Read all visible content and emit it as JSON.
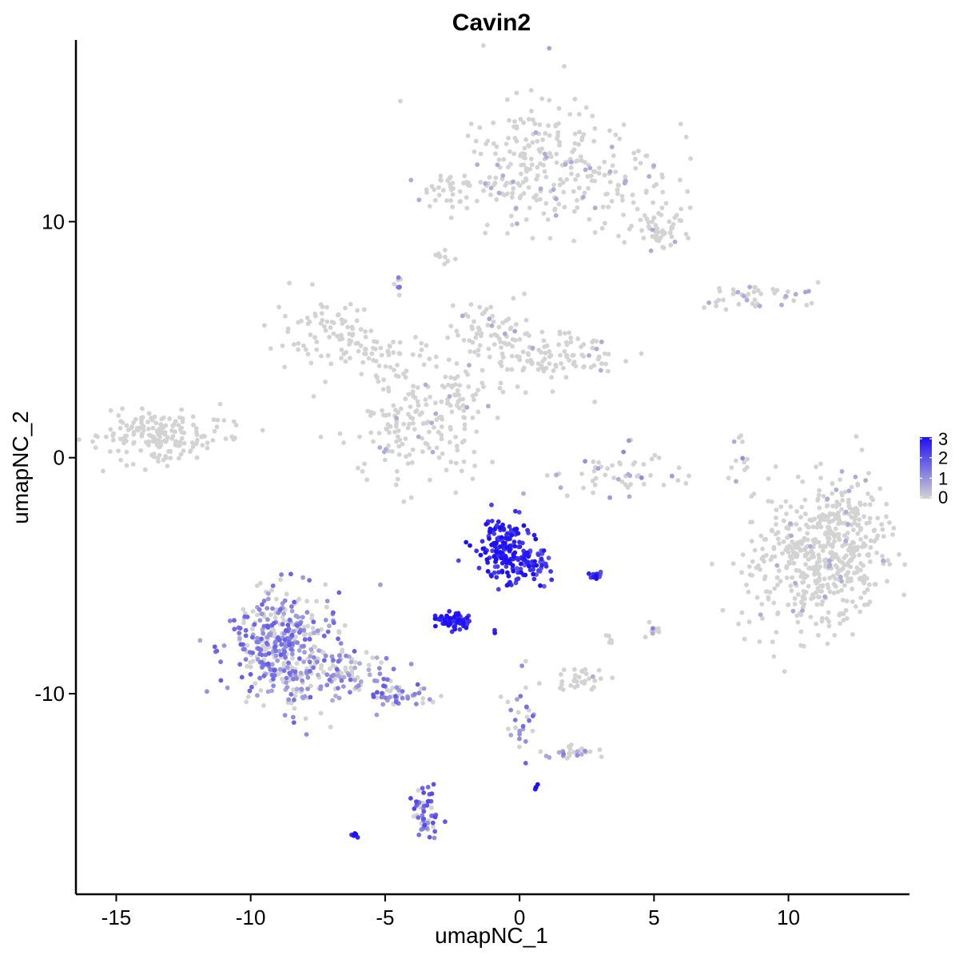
{
  "chart_data": {
    "type": "scatter",
    "title": "Cavin2",
    "xlabel": "umapNC_1",
    "ylabel": "umapNC_2",
    "xlim": [
      -16.5,
      14.5
    ],
    "ylim": [
      -18.5,
      17.7
    ],
    "x_ticks": [
      -15,
      -10,
      -5,
      0,
      5,
      10
    ],
    "y_ticks": [
      10,
      0,
      -10
    ],
    "x_tick_labels": [
      "-15",
      "-10",
      "-5",
      "0",
      "5",
      "10"
    ],
    "y_tick_labels": [
      "10",
      "0",
      "-10"
    ],
    "grid": false,
    "legend": {
      "placement": "right",
      "type": "colorbar",
      "min": 0,
      "max": 3,
      "ticks": [
        3,
        2,
        1,
        0
      ],
      "tick_labels": [
        "3",
        "2",
        "1",
        "0"
      ],
      "color_low": "#d3d3d3",
      "color_high": "#1e10f5"
    },
    "clusters": [
      {
        "cx": 0.6,
        "cy": 13.0,
        "sx": 1.2,
        "sy": 1.5,
        "n": 170,
        "expr": 0.06
      },
      {
        "cx": 3.3,
        "cy": 11.5,
        "sx": 1.7,
        "sy": 1.0,
        "n": 120,
        "expr": 0.05
      },
      {
        "cx": 5.3,
        "cy": 9.7,
        "sx": 0.5,
        "sy": 0.4,
        "n": 50,
        "expr": 0.02
      },
      {
        "cx": -2.2,
        "cy": 11.3,
        "sx": 1.1,
        "sy": 0.4,
        "n": 50,
        "expr": 0.05
      },
      {
        "cx": -2.9,
        "cy": 8.5,
        "sx": 0.25,
        "sy": 0.2,
        "n": 10,
        "expr": 0.0
      },
      {
        "cx": -4.5,
        "cy": 7.3,
        "sx": 0.15,
        "sy": 0.3,
        "n": 8,
        "expr": 0.3
      },
      {
        "cx": 8.8,
        "cy": 6.8,
        "sx": 1.1,
        "sy": 0.3,
        "n": 45,
        "expr": 0.1
      },
      {
        "cx": -7.2,
        "cy": 5.3,
        "sx": 0.9,
        "sy": 0.7,
        "n": 80,
        "expr": 0.0
      },
      {
        "cx": -5.0,
        "cy": 4.2,
        "sx": 1.0,
        "sy": 0.5,
        "n": 50,
        "expr": 0.0
      },
      {
        "cx": -1.2,
        "cy": 5.2,
        "sx": 0.7,
        "sy": 0.8,
        "n": 70,
        "expr": 0.05
      },
      {
        "cx": 1.5,
        "cy": 4.2,
        "sx": 1.4,
        "sy": 0.7,
        "n": 110,
        "expr": 0.05
      },
      {
        "cx": -3.8,
        "cy": 1.2,
        "sx": 1.3,
        "sy": 1.1,
        "n": 150,
        "expr": 0.05
      },
      {
        "cx": -2.3,
        "cy": 2.5,
        "sx": 0.7,
        "sy": 0.6,
        "n": 40,
        "expr": 0.05
      },
      {
        "cx": -13.4,
        "cy": 0.9,
        "sx": 1.2,
        "sy": 0.6,
        "n": 180,
        "expr": 0.0
      },
      {
        "cx": 3.4,
        "cy": -0.6,
        "sx": 1.1,
        "sy": 0.5,
        "n": 55,
        "expr": 0.2
      },
      {
        "cx": 8.2,
        "cy": 0.2,
        "sx": 0.2,
        "sy": 0.6,
        "n": 12,
        "expr": 0.2
      },
      {
        "cx": 11.0,
        "cy": -4.5,
        "sx": 1.3,
        "sy": 1.5,
        "n": 420,
        "expr": 0.04
      },
      {
        "cx": 12.0,
        "cy": -3.0,
        "sx": 0.9,
        "sy": 1.2,
        "n": 160,
        "expr": 0.03
      },
      {
        "cx": -8.8,
        "cy": -8.0,
        "sx": 1.0,
        "sy": 1.2,
        "n": 420,
        "expr": 0.42
      },
      {
        "cx": -6.5,
        "cy": -9.2,
        "sx": 1.0,
        "sy": 0.5,
        "n": 90,
        "expr": 0.35
      },
      {
        "cx": -4.7,
        "cy": -10.1,
        "sx": 0.6,
        "sy": 0.3,
        "n": 50,
        "expr": 0.45
      },
      {
        "cx": -0.6,
        "cy": -3.8,
        "sx": 0.5,
        "sy": 0.6,
        "n": 160,
        "expr": 0.92
      },
      {
        "cx": 0.5,
        "cy": -4.5,
        "sx": 0.4,
        "sy": 0.4,
        "n": 50,
        "expr": 0.82
      },
      {
        "cx": -2.4,
        "cy": -6.9,
        "sx": 0.3,
        "sy": 0.15,
        "n": 60,
        "expr": 0.9
      },
      {
        "cx": 2.8,
        "cy": -5.0,
        "sx": 0.2,
        "sy": 0.08,
        "n": 14,
        "expr": 0.85
      },
      {
        "cx": 5.0,
        "cy": -7.3,
        "sx": 0.1,
        "sy": 0.2,
        "n": 10,
        "expr": 0.3
      },
      {
        "cx": 3.4,
        "cy": -7.6,
        "sx": 0.08,
        "sy": 0.2,
        "n": 6,
        "expr": 0.0
      },
      {
        "cx": 2.4,
        "cy": -9.4,
        "sx": 0.4,
        "sy": 0.3,
        "n": 30,
        "expr": 0.05
      },
      {
        "cx": 0.1,
        "cy": -11.0,
        "sx": 0.3,
        "sy": 0.9,
        "n": 30,
        "expr": 0.4
      },
      {
        "cx": 2.0,
        "cy": -12.5,
        "sx": 0.5,
        "sy": 0.2,
        "n": 25,
        "expr": 0.25
      },
      {
        "cx": -3.5,
        "cy": -15.1,
        "sx": 0.25,
        "sy": 0.6,
        "n": 55,
        "expr": 0.55
      },
      {
        "cx": -6.1,
        "cy": -16.0,
        "sx": 0.08,
        "sy": 0.05,
        "n": 6,
        "expr": 0.95
      },
      {
        "cx": 0.6,
        "cy": -14.0,
        "sx": 0.05,
        "sy": 0.05,
        "n": 4,
        "expr": 0.95
      },
      {
        "cx": -0.9,
        "cy": -7.3,
        "sx": 0.05,
        "sy": 0.05,
        "n": 2,
        "expr": 0.9
      }
    ]
  }
}
